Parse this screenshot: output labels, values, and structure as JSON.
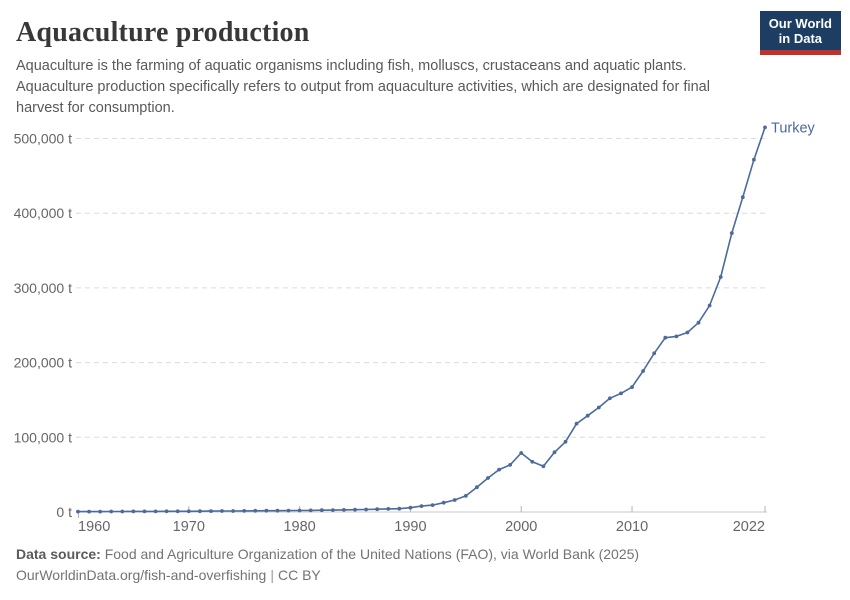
{
  "header": {
    "title": "Aquaculture production",
    "subtitle": "Aquaculture is the farming of aquatic organisms including fish, molluscs, crustaceans and aquatic plants. Aquaculture production specifically refers to output from aquaculture activities, which are designated for final harvest for consumption."
  },
  "logo": {
    "line1": "Our World",
    "line2": "in Data",
    "bg_color": "#1d3d63",
    "accent_color": "#bf312b"
  },
  "footer": {
    "source_label": "Data source:",
    "source_text": "Food and Agriculture Organization of the United Nations (FAO), via World Bank (2025)",
    "url": "OurWorldinData.org/fish-and-overfishing",
    "separator": "|",
    "license": "CC BY"
  },
  "chart_data": {
    "type": "line",
    "title": "Aquaculture production",
    "unit": "t",
    "entity_label": "Turkey",
    "line_color": "#4C6A9C",
    "marker": "circle",
    "grid": "dashed-horizontal",
    "legend_position": "end-of-line",
    "xlim": [
      1960,
      2022
    ],
    "ylim": [
      0,
      500000
    ],
    "xticks": [
      {
        "value": 1960,
        "label": "1960"
      },
      {
        "value": 1970,
        "label": "1970"
      },
      {
        "value": 1980,
        "label": "1980"
      },
      {
        "value": 1990,
        "label": "1990"
      },
      {
        "value": 2000,
        "label": "2000"
      },
      {
        "value": 2010,
        "label": "2010"
      },
      {
        "value": 2022,
        "label": "2022"
      }
    ],
    "yticks": [
      {
        "value": 0,
        "label": "0 t"
      },
      {
        "value": 100000,
        "label": "100,000 t"
      },
      {
        "value": 200000,
        "label": "200,000 t"
      },
      {
        "value": 300000,
        "label": "300,000 t"
      },
      {
        "value": 400000,
        "label": "400,000 t"
      },
      {
        "value": 500000,
        "label": "500,000 t"
      }
    ],
    "x": [
      1960,
      1961,
      1962,
      1963,
      1964,
      1965,
      1966,
      1967,
      1968,
      1969,
      1970,
      1971,
      1972,
      1973,
      1974,
      1975,
      1976,
      1977,
      1978,
      1979,
      1980,
      1981,
      1982,
      1983,
      1984,
      1985,
      1986,
      1987,
      1988,
      1989,
      1990,
      1991,
      1992,
      1993,
      1994,
      1995,
      1996,
      1997,
      1998,
      1999,
      2000,
      2001,
      2002,
      2003,
      2004,
      2005,
      2006,
      2007,
      2008,
      2009,
      2010,
      2011,
      2012,
      2013,
      2014,
      2015,
      2016,
      2017,
      2018,
      2019,
      2020,
      2021,
      2022
    ],
    "series": [
      {
        "name": "Turkey",
        "values": [
          500,
          550,
          600,
          650,
          700,
          750,
          800,
          850,
          900,
          950,
          1000,
          1100,
          1200,
          1300,
          1400,
          1500,
          1600,
          1700,
          1800,
          1900,
          2000,
          2200,
          2400,
          2600,
          2800,
          3075,
          3300,
          3682,
          4100,
          4354,
          5782,
          7835,
          9210,
          12438,
          15998,
          21607,
          33201,
          45450,
          56700,
          63000,
          79031,
          67244,
          61165,
          79943,
          94010,
          118277,
          128943,
          139873,
          152186,
          158729,
          167141,
          188790,
          212410,
          233394,
          235133,
          240334,
          253395,
          276502,
          314537,
          373356,
          421411,
          471686,
          514805
        ]
      }
    ]
  }
}
